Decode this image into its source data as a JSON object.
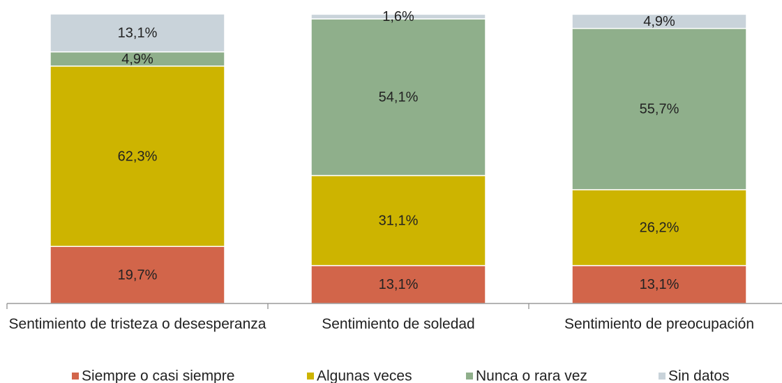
{
  "chart_data": {
    "type": "stacked_bar",
    "categories": [
      "Sentimiento de tristeza o desesperanza",
      "Sentimiento de soledad",
      "Sentimiento de preocupación"
    ],
    "series": [
      {
        "name": "Siempre o casi siempre",
        "color": "#d2654a",
        "values": [
          19.7,
          13.1,
          13.1
        ],
        "value_labels": [
          "19,7%",
          "13,1%",
          "13,1%"
        ]
      },
      {
        "name": "Algunas veces",
        "color": "#cdb400",
        "values": [
          62.3,
          31.1,
          26.2
        ],
        "value_labels": [
          "62,3%",
          "31,1%",
          "26,2%"
        ]
      },
      {
        "name": "Nunca o rara vez",
        "color": "#8faf8b",
        "values": [
          4.9,
          54.1,
          55.7
        ],
        "value_labels": [
          "4,9%",
          "54,1%",
          "55,7%"
        ]
      },
      {
        "name": "Sin datos",
        "color": "#c9d3da",
        "values": [
          13.1,
          1.6,
          4.9
        ],
        "value_labels": [
          "13,1%",
          "1,6%",
          "4,9%"
        ]
      }
    ],
    "ylim": [
      0,
      100
    ]
  }
}
